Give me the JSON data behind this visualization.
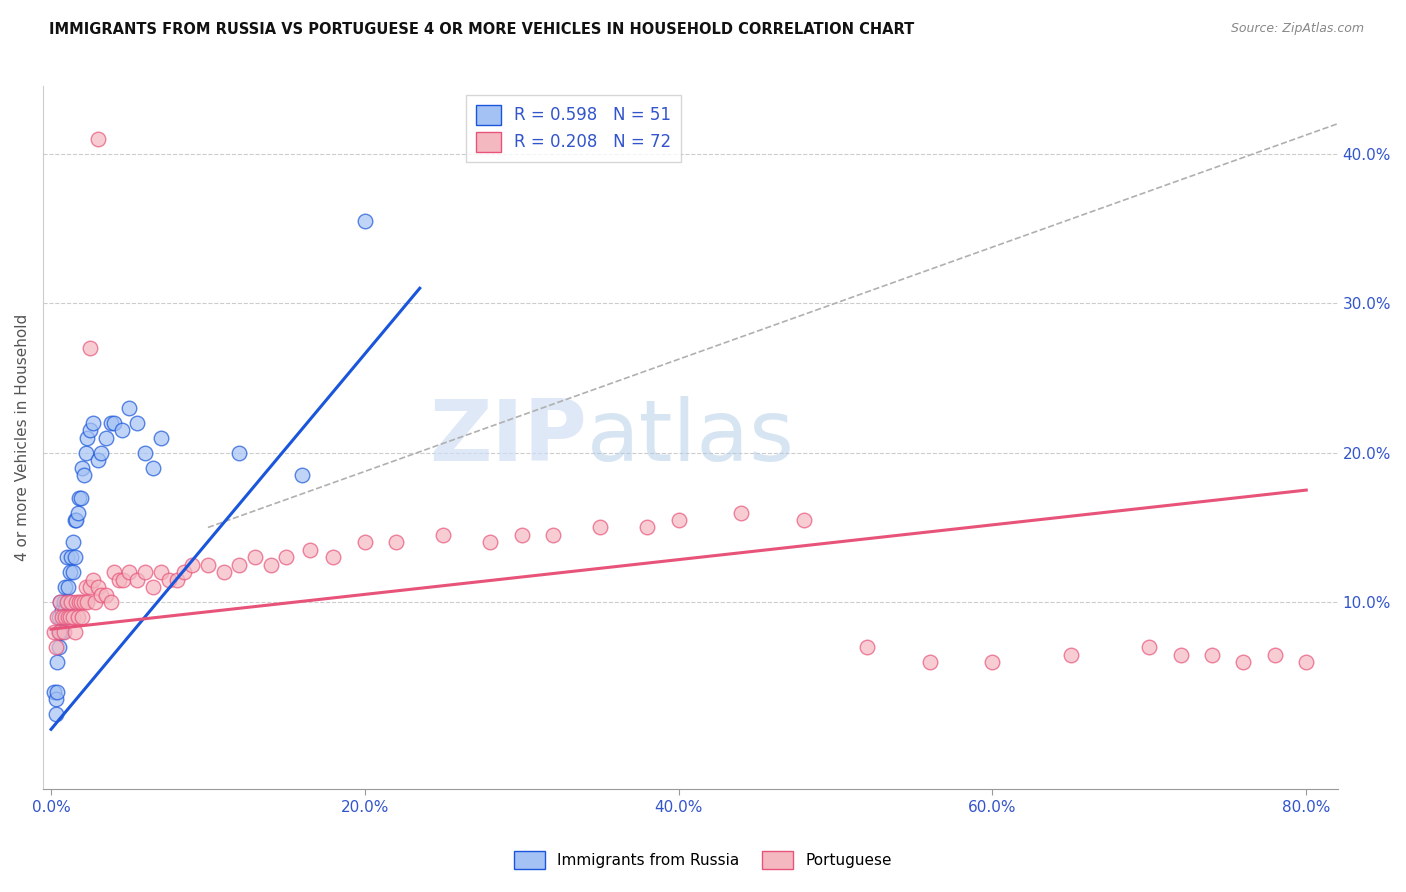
{
  "title": "IMMIGRANTS FROM RUSSIA VS PORTUGUESE 4 OR MORE VEHICLES IN HOUSEHOLD CORRELATION CHART",
  "source": "Source: ZipAtlas.com",
  "xlabel_ticks": [
    "0.0%",
    "20.0%",
    "40.0%",
    "60.0%",
    "80.0%"
  ],
  "xlabel_tick_vals": [
    0.0,
    0.2,
    0.4,
    0.6,
    0.8
  ],
  "ylabel": "4 or more Vehicles in Household",
  "ylabel_right_ticks": [
    "40.0%",
    "30.0%",
    "20.0%",
    "10.0%"
  ],
  "ylabel_right_tick_vals": [
    0.4,
    0.3,
    0.2,
    0.1
  ],
  "xlim": [
    -0.005,
    0.82
  ],
  "ylim": [
    -0.025,
    0.445
  ],
  "color_russia": "#a4c2f4",
  "color_portuguese": "#f4b8c1",
  "line_russia": "#1a56db",
  "line_portuguese": "#e8537a",
  "watermark_zip": "ZIP",
  "watermark_atlas": "atlas",
  "russia_r": 0.598,
  "russia_n": 51,
  "portuguese_r": 0.208,
  "portuguese_n": 72,
  "russia_line_x0": 0.0,
  "russia_line_y0": 0.015,
  "russia_line_x1": 0.235,
  "russia_line_y1": 0.31,
  "portuguese_line_x0": 0.0,
  "portuguese_line_y0": 0.082,
  "portuguese_line_x1": 0.8,
  "portuguese_line_y1": 0.175,
  "diag_line_x": [
    0.1,
    0.82
  ],
  "diag_line_y": [
    0.15,
    0.42
  ],
  "russia_scatter_x": [
    0.002,
    0.003,
    0.003,
    0.004,
    0.004,
    0.005,
    0.005,
    0.005,
    0.006,
    0.006,
    0.007,
    0.007,
    0.008,
    0.008,
    0.009,
    0.009,
    0.01,
    0.01,
    0.01,
    0.011,
    0.012,
    0.012,
    0.013,
    0.014,
    0.014,
    0.015,
    0.015,
    0.016,
    0.017,
    0.018,
    0.019,
    0.02,
    0.021,
    0.022,
    0.023,
    0.025,
    0.027,
    0.03,
    0.032,
    0.035,
    0.038,
    0.04,
    0.045,
    0.05,
    0.055,
    0.06,
    0.065,
    0.07,
    0.12,
    0.16,
    0.2
  ],
  "russia_scatter_y": [
    0.04,
    0.035,
    0.025,
    0.06,
    0.04,
    0.07,
    0.08,
    0.09,
    0.08,
    0.1,
    0.08,
    0.095,
    0.09,
    0.1,
    0.095,
    0.11,
    0.09,
    0.1,
    0.13,
    0.11,
    0.1,
    0.12,
    0.13,
    0.12,
    0.14,
    0.13,
    0.155,
    0.155,
    0.16,
    0.17,
    0.17,
    0.19,
    0.185,
    0.2,
    0.21,
    0.215,
    0.22,
    0.195,
    0.2,
    0.21,
    0.22,
    0.22,
    0.215,
    0.23,
    0.22,
    0.2,
    0.19,
    0.21,
    0.2,
    0.185,
    0.355
  ],
  "portuguese_scatter_x": [
    0.002,
    0.003,
    0.004,
    0.005,
    0.006,
    0.007,
    0.008,
    0.009,
    0.01,
    0.011,
    0.012,
    0.013,
    0.014,
    0.015,
    0.016,
    0.017,
    0.018,
    0.019,
    0.02,
    0.021,
    0.022,
    0.023,
    0.025,
    0.027,
    0.028,
    0.03,
    0.032,
    0.035,
    0.038,
    0.04,
    0.043,
    0.046,
    0.05,
    0.055,
    0.06,
    0.065,
    0.07,
    0.075,
    0.08,
    0.085,
    0.09,
    0.1,
    0.11,
    0.12,
    0.13,
    0.14,
    0.15,
    0.165,
    0.18,
    0.2,
    0.22,
    0.25,
    0.28,
    0.3,
    0.32,
    0.35,
    0.38,
    0.4,
    0.44,
    0.48,
    0.52,
    0.56,
    0.6,
    0.65,
    0.7,
    0.72,
    0.74,
    0.76,
    0.78,
    0.8,
    0.025,
    0.03
  ],
  "portuguese_scatter_y": [
    0.08,
    0.07,
    0.09,
    0.08,
    0.1,
    0.09,
    0.08,
    0.09,
    0.1,
    0.09,
    0.09,
    0.1,
    0.09,
    0.08,
    0.1,
    0.09,
    0.1,
    0.1,
    0.09,
    0.1,
    0.11,
    0.1,
    0.11,
    0.115,
    0.1,
    0.11,
    0.105,
    0.105,
    0.1,
    0.12,
    0.115,
    0.115,
    0.12,
    0.115,
    0.12,
    0.11,
    0.12,
    0.115,
    0.115,
    0.12,
    0.125,
    0.125,
    0.12,
    0.125,
    0.13,
    0.125,
    0.13,
    0.135,
    0.13,
    0.14,
    0.14,
    0.145,
    0.14,
    0.145,
    0.145,
    0.15,
    0.15,
    0.155,
    0.16,
    0.155,
    0.07,
    0.06,
    0.06,
    0.065,
    0.07,
    0.065,
    0.065,
    0.06,
    0.065,
    0.06,
    0.27,
    0.41
  ]
}
